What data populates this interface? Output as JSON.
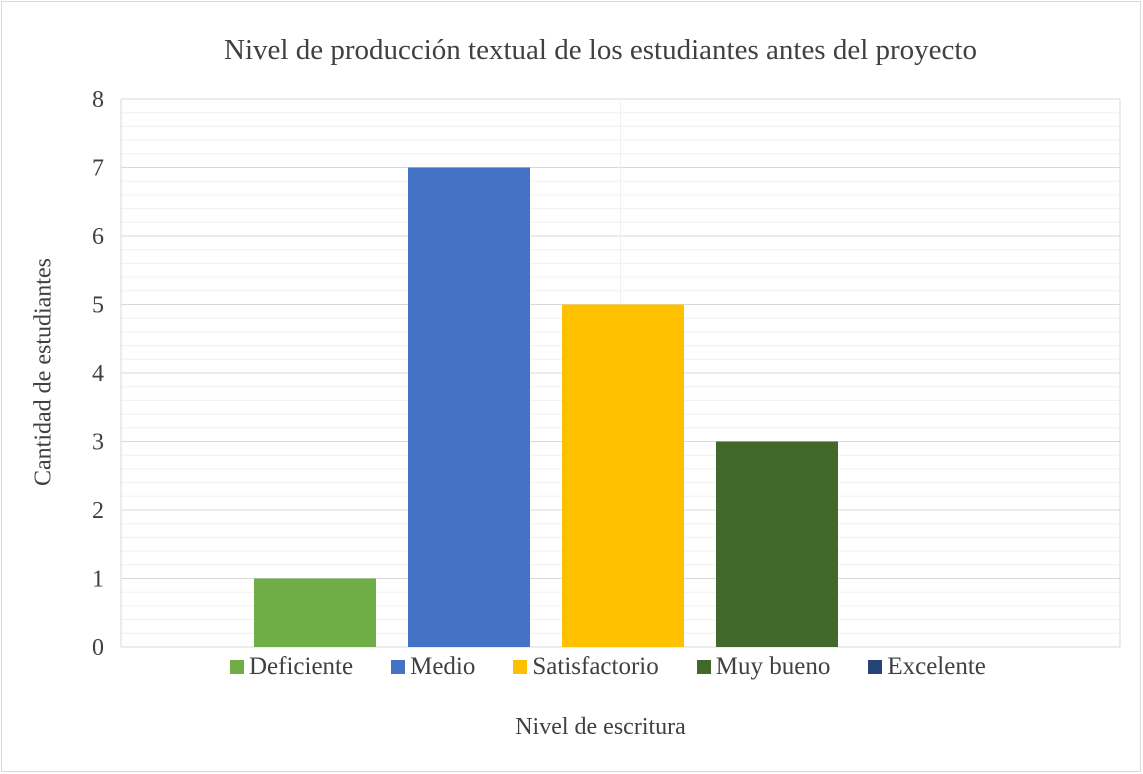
{
  "chart_data": {
    "type": "bar",
    "title": "Nivel de producción textual de los estudiantes antes del proyecto",
    "xlabel": "Nivel de escritura",
    "ylabel": "Cantidad de estudiantes",
    "categories": [
      "Deficiente",
      "Medio",
      "Satisfactorio",
      "Muy bueno",
      "Excelente"
    ],
    "values": [
      1,
      7,
      5,
      3,
      0
    ],
    "colors": [
      "#70ad47",
      "#4472c4",
      "#ffc000",
      "#43682b",
      "#264478"
    ],
    "ylim": [
      0,
      8
    ],
    "yticks": [
      "0",
      "1",
      "2",
      "3",
      "4",
      "5",
      "6",
      "7",
      "8"
    ],
    "grid": true,
    "legend_position": "bottom"
  }
}
